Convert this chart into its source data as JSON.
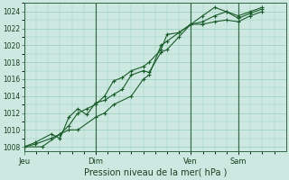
{
  "xlabel": "Pression niveau de la mer( hPa )",
  "bg_color": "#cce8e0",
  "plot_bg_color": "#cce8e0",
  "grid_color": "#99ccbb",
  "line_color": "#1a5c2a",
  "ylim": [
    1007.5,
    1025.0
  ],
  "yticks": [
    1008,
    1010,
    1012,
    1014,
    1016,
    1018,
    1020,
    1022,
    1024
  ],
  "day_positions": [
    0.0,
    0.333,
    0.778,
    1.0
  ],
  "day_labels": [
    "Jeu",
    "Dim",
    "Ven",
    "Sam"
  ],
  "xlim": [
    0.0,
    1.222
  ],
  "series": [
    [
      [
        0.0,
        1008
      ],
      [
        0.05,
        1008.5
      ],
      [
        0.125,
        1009.5
      ],
      [
        0.167,
        1009
      ],
      [
        0.208,
        1011.5
      ],
      [
        0.25,
        1012.5
      ],
      [
        0.292,
        1011.8
      ],
      [
        0.333,
        1013.2
      ],
      [
        0.375,
        1013.5
      ],
      [
        0.417,
        1014.2
      ],
      [
        0.458,
        1014.8
      ],
      [
        0.5,
        1016.5
      ],
      [
        0.556,
        1017.0
      ],
      [
        0.583,
        1016.8
      ],
      [
        0.639,
        1019.2
      ],
      [
        0.667,
        1019.5
      ],
      [
        0.722,
        1021.0
      ],
      [
        0.778,
        1022.5
      ],
      [
        0.833,
        1022.8
      ],
      [
        0.889,
        1023.5
      ],
      [
        0.944,
        1024.0
      ],
      [
        1.0,
        1023.2
      ],
      [
        1.056,
        1023.8
      ],
      [
        1.111,
        1024.3
      ]
    ],
    [
      [
        0.0,
        1008
      ],
      [
        0.05,
        1008.3
      ],
      [
        0.125,
        1009.0
      ],
      [
        0.167,
        1009.5
      ],
      [
        0.208,
        1010.5
      ],
      [
        0.25,
        1012.0
      ],
      [
        0.292,
        1012.5
      ],
      [
        0.333,
        1013.0
      ],
      [
        0.375,
        1014.0
      ],
      [
        0.417,
        1015.8
      ],
      [
        0.458,
        1016.2
      ],
      [
        0.5,
        1017.0
      ],
      [
        0.556,
        1017.5
      ],
      [
        0.583,
        1018.0
      ],
      [
        0.639,
        1019.5
      ],
      [
        0.667,
        1021.3
      ],
      [
        0.722,
        1021.5
      ],
      [
        0.778,
        1022.5
      ],
      [
        0.833,
        1022.5
      ],
      [
        0.889,
        1022.8
      ],
      [
        0.944,
        1023.0
      ],
      [
        1.0,
        1022.8
      ],
      [
        1.056,
        1023.5
      ],
      [
        1.111,
        1024.0
      ]
    ],
    [
      [
        0.0,
        1008
      ],
      [
        0.083,
        1008.0
      ],
      [
        0.167,
        1009.5
      ],
      [
        0.208,
        1010.0
      ],
      [
        0.25,
        1010.0
      ],
      [
        0.333,
        1011.5
      ],
      [
        0.375,
        1012.0
      ],
      [
        0.417,
        1013.0
      ],
      [
        0.5,
        1014.0
      ],
      [
        0.556,
        1016.0
      ],
      [
        0.583,
        1016.5
      ],
      [
        0.639,
        1020.0
      ],
      [
        0.667,
        1020.5
      ],
      [
        0.722,
        1021.5
      ],
      [
        0.778,
        1022.5
      ],
      [
        0.833,
        1023.5
      ],
      [
        0.889,
        1024.5
      ],
      [
        0.944,
        1024.0
      ],
      [
        1.0,
        1023.5
      ],
      [
        1.056,
        1024.0
      ],
      [
        1.111,
        1024.5
      ]
    ]
  ],
  "vline_positions": [
    0.0,
    0.333,
    0.778,
    1.0
  ]
}
